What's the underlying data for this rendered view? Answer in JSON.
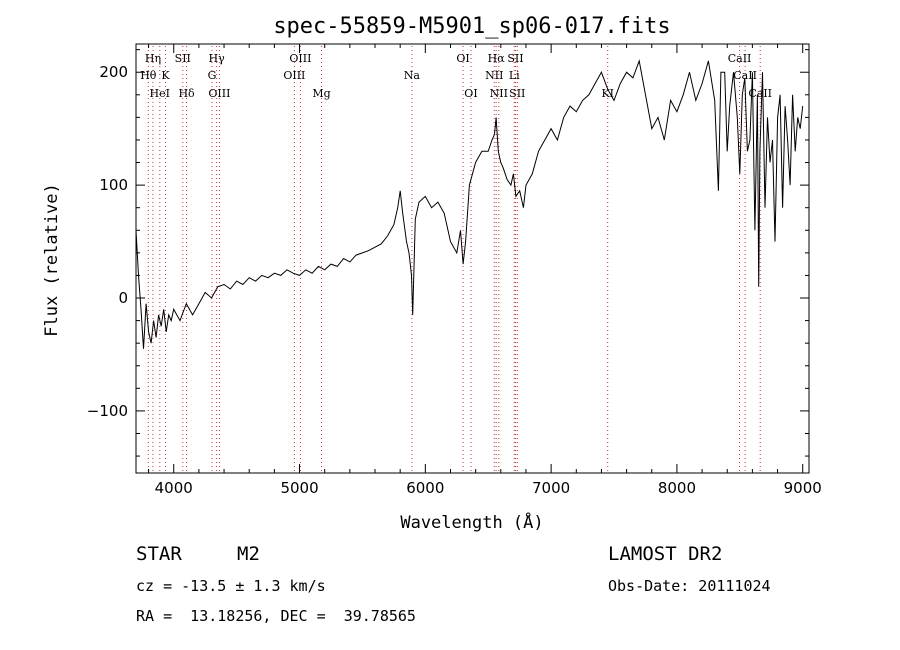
{
  "chart_data": {
    "type": "line",
    "title": "spec-55859-M5901_sp06-017.fits",
    "xlabel": "Wavelength (Å)",
    "ylabel": "Flux (relative)",
    "xlim": [
      3700,
      9050
    ],
    "ylim": [
      -155,
      225
    ],
    "xticks": [
      4000,
      5000,
      6000,
      7000,
      8000,
      9000
    ],
    "yticks": [
      -100,
      0,
      100,
      200
    ],
    "grid": false,
    "line_color": "#000000",
    "marker_color": "#cc3333",
    "series": [
      {
        "x": [
          3700,
          3720,
          3740,
          3760,
          3780,
          3800,
          3820,
          3840,
          3860,
          3880,
          3900,
          3920,
          3940,
          3960,
          3980,
          4000,
          4050,
          4100,
          4150,
          4200,
          4250,
          4300,
          4350,
          4400,
          4450,
          4500,
          4550,
          4600,
          4650,
          4700,
          4750,
          4800,
          4850,
          4900,
          4950,
          5000,
          5050,
          5100,
          5150,
          5200,
          5250,
          5300,
          5350,
          5400,
          5450,
          5500,
          5550,
          5600,
          5650,
          5700,
          5750,
          5780,
          5800,
          5820,
          5850,
          5870,
          5890,
          5900,
          5920,
          5950,
          6000,
          6050,
          6100,
          6150,
          6200,
          6250,
          6280,
          6300,
          6320,
          6350,
          6400,
          6450,
          6500,
          6530,
          6550,
          6563,
          6580,
          6600,
          6620,
          6650,
          6680,
          6700,
          6720,
          6750,
          6780,
          6800,
          6850,
          6900,
          6950,
          7000,
          7050,
          7100,
          7150,
          7200,
          7250,
          7300,
          7350,
          7400,
          7450,
          7500,
          7550,
          7600,
          7650,
          7700,
          7750,
          7800,
          7850,
          7900,
          7950,
          8000,
          8050,
          8100,
          8150,
          8200,
          8250,
          8300,
          8330,
          8350,
          8380,
          8400,
          8420,
          8450,
          8480,
          8500,
          8520,
          8540,
          8560,
          8580,
          8600,
          8620,
          8640,
          8650,
          8660,
          8680,
          8700,
          8720,
          8740,
          8760,
          8780,
          8800,
          8820,
          8840,
          8860,
          8880,
          8900,
          8920,
          8940,
          8960,
          8980,
          9000
        ],
        "y": [
          60,
          20,
          -10,
          -45,
          -5,
          -30,
          -40,
          -20,
          -35,
          -15,
          -25,
          -10,
          -30,
          -15,
          -20,
          -10,
          -20,
          -5,
          -15,
          -5,
          5,
          0,
          10,
          12,
          8,
          15,
          12,
          18,
          15,
          20,
          18,
          22,
          20,
          25,
          22,
          20,
          25,
          22,
          28,
          25,
          30,
          28,
          35,
          32,
          38,
          40,
          42,
          45,
          48,
          55,
          65,
          80,
          95,
          75,
          50,
          40,
          20,
          -15,
          70,
          85,
          90,
          80,
          85,
          75,
          50,
          40,
          60,
          30,
          50,
          100,
          120,
          130,
          130,
          140,
          145,
          160,
          130,
          120,
          115,
          105,
          100,
          110,
          90,
          95,
          80,
          100,
          110,
          130,
          140,
          150,
          140,
          160,
          170,
          165,
          175,
          180,
          190,
          200,
          185,
          175,
          190,
          200,
          195,
          210,
          180,
          150,
          160,
          140,
          175,
          165,
          180,
          200,
          175,
          190,
          210,
          175,
          95,
          200,
          200,
          130,
          170,
          200,
          160,
          110,
          180,
          195,
          130,
          140,
          200,
          60,
          180,
          10,
          130,
          200,
          80,
          160,
          120,
          140,
          50,
          160,
          180,
          80,
          170,
          140,
          100,
          180,
          130,
          160,
          150,
          170
        ]
      }
    ],
    "lines": [
      {
        "name": "Hη",
        "x": 3835,
        "row": 1
      },
      {
        "name": "Hθ",
        "x": 3798,
        "row": 2
      },
      {
        "name": "HeI",
        "x": 3889,
        "row": 3
      },
      {
        "name": "K",
        "x": 3934,
        "row": 2
      },
      {
        "name": "SII",
        "x": 4072,
        "row": 1
      },
      {
        "name": "Hδ",
        "x": 4102,
        "row": 3
      },
      {
        "name": "Hγ",
        "x": 4341,
        "row": 1
      },
      {
        "name": "G",
        "x": 4304,
        "row": 2
      },
      {
        "name": "OIII",
        "x": 4363,
        "row": 3
      },
      {
        "name": "OIII",
        "x": 5007,
        "row": 1
      },
      {
        "name": "OIII",
        "x": 4959,
        "row": 2
      },
      {
        "name": "Mg",
        "x": 5175,
        "row": 3
      },
      {
        "name": "Na",
        "x": 5893,
        "row": 2
      },
      {
        "name": "OI",
        "x": 6300,
        "row": 1
      },
      {
        "name": "OI",
        "x": 6363,
        "row": 3
      },
      {
        "name": "Hα",
        "x": 6563,
        "row": 1
      },
      {
        "name": "SII",
        "x": 6717,
        "row": 1
      },
      {
        "name": "NII",
        "x": 6548,
        "row": 2
      },
      {
        "name": "Li",
        "x": 6707,
        "row": 2
      },
      {
        "name": "NII",
        "x": 6584,
        "row": 3
      },
      {
        "name": "SII",
        "x": 6731,
        "row": 3
      },
      {
        "name": "KI",
        "x": 7450,
        "row": 3
      },
      {
        "name": "CaII",
        "x": 8498,
        "row": 1
      },
      {
        "name": "CaII",
        "x": 8542,
        "row": 2
      },
      {
        "name": "CaII",
        "x": 8662,
        "row": 3
      }
    ]
  },
  "info": {
    "class": "STAR",
    "subclass": "M2",
    "survey": "LAMOST DR2",
    "cz": "cz = -13.5 ± 1.3 km/s",
    "obs_date": "Obs-Date: 20111024",
    "radec": "RA =  13.18256, DEC =  39.78565"
  }
}
